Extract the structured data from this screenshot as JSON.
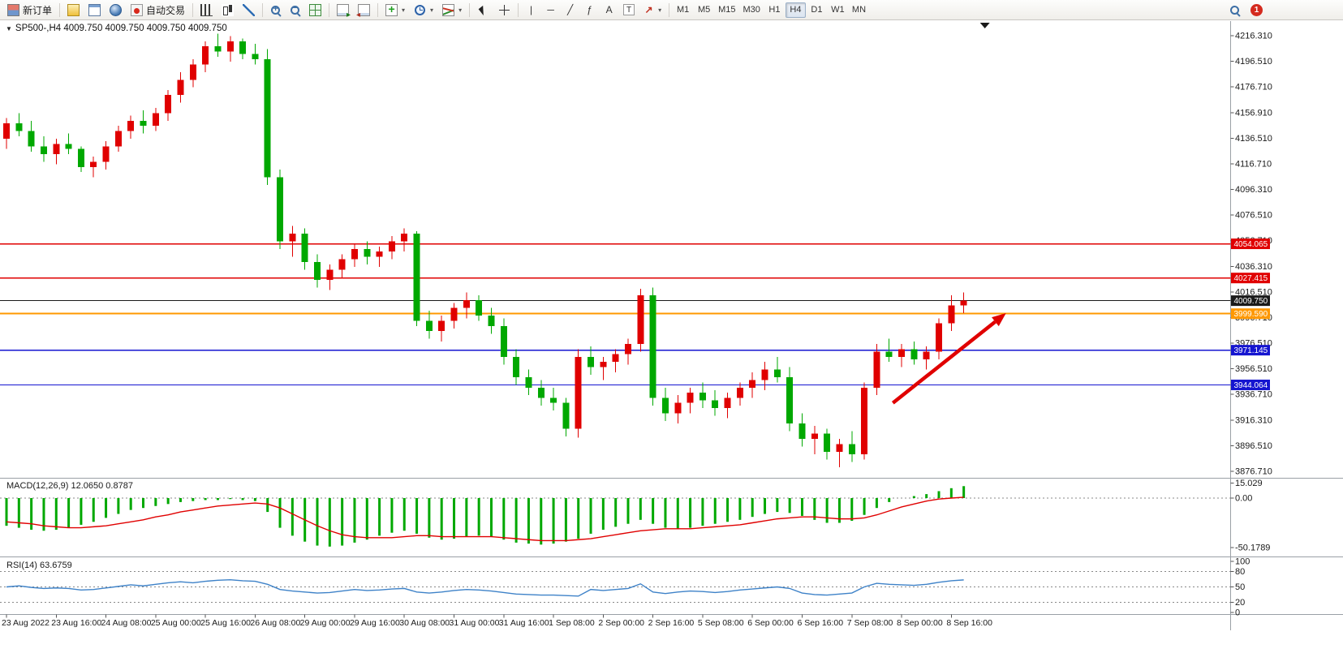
{
  "toolbar": {
    "new_order_label": "新订单",
    "autotrade_label": "自动交易",
    "timeframes": [
      "M1",
      "M5",
      "M15",
      "M30",
      "H1",
      "H4",
      "D1",
      "W1",
      "MN"
    ],
    "active_timeframe": "H4",
    "notification_count": "1"
  },
  "icons": {
    "caret": "▾",
    "symbol_marker": "▼",
    "vline": "|",
    "hline": "─",
    "trendline": "╱",
    "fibonacci": "ƒ",
    "text": "A",
    "text_label": "T",
    "arrow_shape": "↗"
  },
  "chart": {
    "symbol_label": "SP500-,H4 4009.750 4009.750 4009.750 4009.750"
  },
  "chart_data": {
    "type": "candlestick",
    "symbol": "SP500-",
    "timeframe": "H4",
    "ohlc": [
      "4009.750",
      "4009.750",
      "4009.750",
      "4009.750"
    ],
    "price_range": {
      "top": 4216.31,
      "bottom": 3876.71
    },
    "price_axis_ticks": [
      "4216.310",
      "4196.510",
      "4176.710",
      "4156.910",
      "4136.510",
      "4116.710",
      "4096.310",
      "4076.510",
      "4056.710",
      "4036.310",
      "4016.510",
      "3996.710",
      "3976.510",
      "3956.510",
      "3936.710",
      "3916.310",
      "3896.510",
      "3876.710"
    ],
    "x_label_step": 4,
    "x_labels": [
      "23 Aug 2022",
      "23 Aug 16:00",
      "24 Aug 08:00",
      "25 Aug 00:00",
      "25 Aug 16:00",
      "26 Aug 08:00",
      "29 Aug 00:00",
      "29 Aug 16:00",
      "30 Aug 08:00",
      "31 Aug 00:00",
      "31 Aug 16:00",
      "1 Sep 08:00",
      "2 Sep 00:00",
      "2 Sep 16:00",
      "5 Sep 08:00",
      "6 Sep 00:00",
      "6 Sep 16:00",
      "7 Sep 08:00",
      "8 Sep 00:00",
      "8 Sep 16:00"
    ],
    "candles": [
      [
        4136,
        4152,
        4128,
        4148
      ],
      [
        4148,
        4156,
        4138,
        4142
      ],
      [
        4142,
        4150,
        4126,
        4130
      ],
      [
        4130,
        4138,
        4118,
        4124
      ],
      [
        4124,
        4136,
        4116,
        4132
      ],
      [
        4132,
        4140,
        4124,
        4128
      ],
      [
        4128,
        4130,
        4110,
        4114
      ],
      [
        4114,
        4122,
        4106,
        4118
      ],
      [
        4118,
        4134,
        4112,
        4130
      ],
      [
        4130,
        4146,
        4126,
        4142
      ],
      [
        4142,
        4154,
        4136,
        4150
      ],
      [
        4150,
        4158,
        4140,
        4146
      ],
      [
        4146,
        4160,
        4142,
        4156
      ],
      [
        4156,
        4174,
        4150,
        4170
      ],
      [
        4170,
        4188,
        4164,
        4182
      ],
      [
        4182,
        4198,
        4176,
        4194
      ],
      [
        4194,
        4212,
        4188,
        4208
      ],
      [
        4208,
        4218,
        4200,
        4204
      ],
      [
        4204,
        4216,
        4196,
        4212
      ],
      [
        4212,
        4214,
        4198,
        4202
      ],
      [
        4202,
        4210,
        4194,
        4198
      ],
      [
        4198,
        4206,
        4100,
        4106
      ],
      [
        4106,
        4112,
        4050,
        4056
      ],
      [
        4056,
        4068,
        4044,
        4062
      ],
      [
        4062,
        4066,
        4034,
        4040
      ],
      [
        4040,
        4046,
        4020,
        4026
      ],
      [
        4026,
        4038,
        4018,
        4034
      ],
      [
        4034,
        4046,
        4028,
        4042
      ],
      [
        4042,
        4054,
        4036,
        4050
      ],
      [
        4050,
        4056,
        4038,
        4044
      ],
      [
        4044,
        4052,
        4036,
        4048
      ],
      [
        4048,
        4060,
        4042,
        4056
      ],
      [
        4056,
        4066,
        4048,
        4062
      ],
      [
        4062,
        4064,
        3990,
        3994
      ],
      [
        3994,
        4002,
        3980,
        3986
      ],
      [
        3986,
        3998,
        3978,
        3994
      ],
      [
        3994,
        4008,
        3988,
        4004
      ],
      [
        4004,
        4016,
        3996,
        4010
      ],
      [
        4010,
        4014,
        3994,
        3998
      ],
      [
        3998,
        4004,
        3984,
        3990
      ],
      [
        3990,
        3996,
        3960,
        3966
      ],
      [
        3966,
        3972,
        3944,
        3950
      ],
      [
        3950,
        3956,
        3936,
        3942
      ],
      [
        3942,
        3948,
        3928,
        3934
      ],
      [
        3934,
        3942,
        3924,
        3930
      ],
      [
        3930,
        3934,
        3904,
        3910
      ],
      [
        3910,
        3972,
        3903,
        3966
      ],
      [
        3966,
        3974,
        3952,
        3958
      ],
      [
        3958,
        3966,
        3948,
        3962
      ],
      [
        3962,
        3972,
        3954,
        3968
      ],
      [
        3968,
        3980,
        3960,
        3976
      ],
      [
        3976,
        4019,
        3970,
        4014
      ],
      [
        4014,
        4020,
        3928,
        3934
      ],
      [
        3934,
        3942,
        3916,
        3922
      ],
      [
        3922,
        3936,
        3914,
        3930
      ],
      [
        3930,
        3942,
        3922,
        3938
      ],
      [
        3938,
        3946,
        3926,
        3932
      ],
      [
        3932,
        3940,
        3920,
        3926
      ],
      [
        3926,
        3938,
        3918,
        3934
      ],
      [
        3934,
        3946,
        3928,
        3942
      ],
      [
        3942,
        3954,
        3934,
        3948
      ],
      [
        3948,
        3962,
        3940,
        3956
      ],
      [
        3956,
        3966,
        3946,
        3950
      ],
      [
        3950,
        3958,
        3908,
        3914
      ],
      [
        3914,
        3922,
        3896,
        3902
      ],
      [
        3902,
        3912,
        3890,
        3906
      ],
      [
        3906,
        3910,
        3886,
        3892
      ],
      [
        3892,
        3902,
        3880,
        3898
      ],
      [
        3898,
        3908,
        3884,
        3890
      ],
      [
        3890,
        3946,
        3886,
        3942
      ],
      [
        3942,
        3976,
        3936,
        3970
      ],
      [
        3970,
        3980,
        3962,
        3966
      ],
      [
        3966,
        3976,
        3958,
        3972
      ],
      [
        3972,
        3978,
        3960,
        3964
      ],
      [
        3964,
        3974,
        3956,
        3970
      ],
      [
        3970,
        3996,
        3964,
        3992
      ],
      [
        3992,
        4014,
        3986,
        4006
      ],
      [
        4006,
        4016,
        4000,
        4009.75
      ]
    ],
    "hlines": [
      {
        "value": 4054.065,
        "label": "4054.065",
        "color": "#e00000",
        "width": 1.4
      },
      {
        "value": 4027.415,
        "label": "4027.415",
        "color": "#e00000",
        "width": 1.4
      },
      {
        "value": 4009.75,
        "label": "4009.750",
        "color": "#1a1a1a",
        "width": 1
      },
      {
        "value": 3999.59,
        "label": "3999.590",
        "color": "#ff9800",
        "width": 2
      },
      {
        "value": 3971.145,
        "label": "3971.145",
        "color": "#1515d0",
        "width": 1.4
      },
      {
        "value": 3944.064,
        "label": "3944.064",
        "color": "#1515d0",
        "width": 1.4
      }
    ],
    "arrow": {
      "from": {
        "candle": 71.3,
        "price": 3930
      },
      "to": {
        "candle": 80.4,
        "price": 4000
      },
      "color": "#e00000"
    },
    "shift_marker_candle": 78.7,
    "colors": {
      "up": "#e00000",
      "down": "#00a800",
      "macd_hist": "#00a800",
      "macd_signal": "#e00000",
      "rsi_line": "#3e82c8"
    },
    "indicators": {
      "macd": {
        "label": "MACD(12,26,9)",
        "value": "12.0650",
        "signal_value": "0.8787",
        "axis": [
          "15.029",
          "0.00",
          "-50.1789"
        ],
        "histogram": [
          -28,
          -30,
          -32,
          -33,
          -32,
          -30,
          -27,
          -24,
          -20,
          -16,
          -12,
          -10,
          -8,
          -6,
          -4,
          -3,
          -2,
          -2,
          -1,
          -2,
          -3,
          -14,
          -30,
          -38,
          -44,
          -48,
          -49,
          -48,
          -45,
          -42,
          -38,
          -35,
          -33,
          -36,
          -40,
          -42,
          -41,
          -39,
          -38,
          -39,
          -42,
          -45,
          -46,
          -47,
          -46,
          -44,
          -41,
          -36,
          -32,
          -29,
          -26,
          -22,
          -26,
          -30,
          -31,
          -30,
          -28,
          -26,
          -24,
          -22,
          -19,
          -16,
          -14,
          -15,
          -18,
          -22,
          -25,
          -25,
          -23,
          -17,
          -10,
          -4,
          0,
          2,
          4,
          7,
          10,
          12.065
        ],
        "signal": [
          -24,
          -25,
          -26,
          -28,
          -29,
          -30,
          -30,
          -29,
          -28,
          -26,
          -24,
          -22,
          -19,
          -17,
          -14,
          -12,
          -10,
          -8,
          -7,
          -6,
          -5,
          -6,
          -10,
          -16,
          -22,
          -28,
          -33,
          -37,
          -39,
          -40,
          -40,
          -40,
          -39,
          -38,
          -38,
          -39,
          -39,
          -39,
          -39,
          -39,
          -40,
          -41,
          -42,
          -43,
          -43,
          -43,
          -42,
          -41,
          -39,
          -37,
          -35,
          -33,
          -32,
          -31,
          -31,
          -31,
          -30,
          -29,
          -28,
          -27,
          -25,
          -23,
          -21,
          -20,
          -19,
          -19,
          -20,
          -21,
          -21,
          -20,
          -17,
          -13,
          -9,
          -6,
          -3,
          -1,
          0,
          0.879
        ]
      },
      "rsi": {
        "label": "RSI(14)",
        "value": "63.6759",
        "axis": [
          "100",
          "80",
          "50",
          "20",
          "0"
        ],
        "levels": [
          80,
          50,
          20
        ],
        "values": [
          50,
          52,
          49,
          47,
          48,
          47,
          44,
          45,
          48,
          51,
          54,
          52,
          55,
          58,
          60,
          58,
          61,
          63,
          64,
          62,
          61,
          55,
          45,
          42,
          40,
          38,
          39,
          42,
          45,
          43,
          44,
          46,
          47,
          40,
          38,
          40,
          43,
          45,
          44,
          42,
          39,
          36,
          35,
          34,
          34,
          33,
          32,
          45,
          43,
          45,
          47,
          56,
          40,
          37,
          40,
          42,
          41,
          39,
          41,
          44,
          46,
          48,
          50,
          47,
          38,
          35,
          34,
          36,
          38,
          50,
          57,
          55,
          54,
          53,
          55,
          59,
          62,
          63.676
        ]
      }
    }
  }
}
